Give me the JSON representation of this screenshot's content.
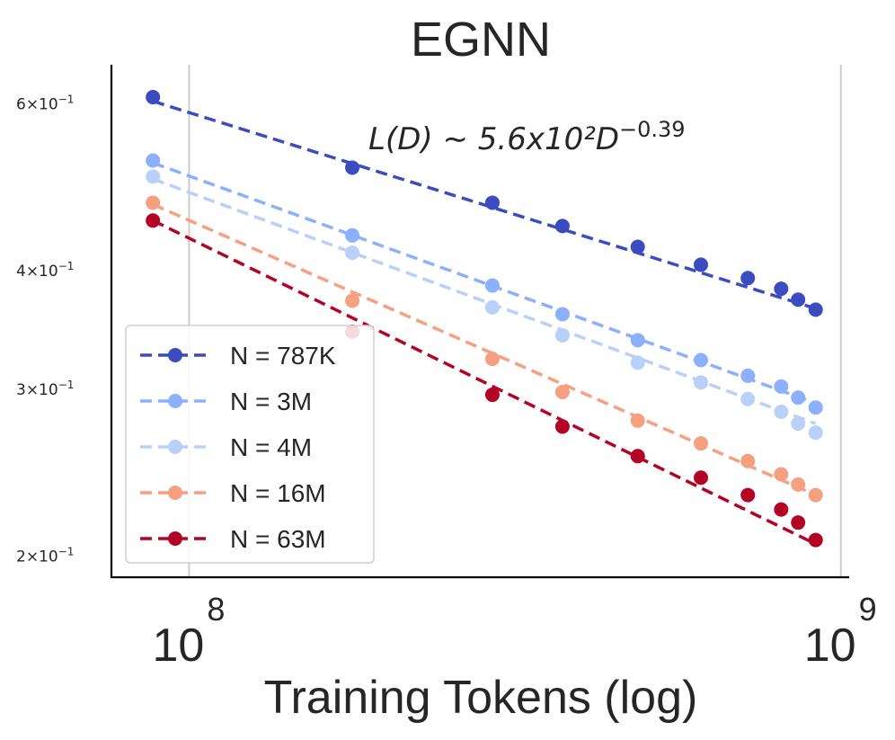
{
  "chart_data": {
    "type": "line",
    "title": "EGNN",
    "xlabel": "Training Tokens (log)",
    "ylabel": "",
    "xscale": "log",
    "yscale": "log",
    "xlim": [
      76000000,
      1030000000
    ],
    "ylim": [
      0.19,
      0.66
    ],
    "xticks": [
      {
        "value": 100000000,
        "base": "10",
        "exp": "8"
      },
      {
        "value": 1000000000,
        "base": "10",
        "exp": "9"
      }
    ],
    "yticks": [
      {
        "value": 0.6,
        "mant": "6",
        "base": "10",
        "exp": "−1"
      },
      {
        "value": 0.4,
        "mant": "4",
        "base": "10",
        "exp": "−1"
      },
      {
        "value": 0.3,
        "mant": "3",
        "base": "10",
        "exp": "−1"
      },
      {
        "value": 0.2,
        "mant": "2",
        "base": "10",
        "exp": "−1"
      }
    ],
    "grid": {
      "x": true,
      "y": false
    },
    "legend_position": "lower-left",
    "annotation": {
      "text": "L(D) ∼ 5.6x10²D^−0.39",
      "prefix": "L(D) ∼ 5.6x10²D",
      "exp": "−0.39"
    },
    "x": [
      88000000,
      178000000,
      292000000,
      374000000,
      488000000,
      610000000,
      720000000,
      810000000,
      860000000,
      915000000
    ],
    "series": [
      {
        "name": "N = 787K",
        "color": "#3b4cc0",
        "marker_x": [
          88000000,
          178000000,
          292000000,
          374000000,
          488000000,
          610000000,
          720000000,
          810000000,
          860000000,
          915000000
        ],
        "values": [
          0.61,
          0.514,
          0.472,
          0.446,
          0.424,
          0.406,
          0.393,
          0.383,
          0.373,
          0.364
        ],
        "fit_start": 0.604,
        "fit_end": 0.365
      },
      {
        "name": "N = 3M",
        "color": "#8db0fe",
        "marker_x": [
          88000000,
          178000000,
          292000000,
          374000000,
          488000000,
          610000000,
          720000000,
          810000000,
          860000000,
          915000000
        ],
        "values": [
          0.523,
          0.436,
          0.386,
          0.36,
          0.338,
          0.322,
          0.31,
          0.302,
          0.294,
          0.287
        ],
        "fit_start": 0.52,
        "fit_end": 0.29
      },
      {
        "name": "N = 4M",
        "color": "#b9d0f9",
        "marker_x": [
          88000000,
          178000000,
          292000000,
          374000000,
          488000000,
          610000000,
          720000000,
          810000000,
          860000000,
          915000000
        ],
        "values": [
          0.503,
          0.418,
          0.366,
          0.342,
          0.32,
          0.305,
          0.293,
          0.284,
          0.276,
          0.27
        ],
        "fit_start": 0.5,
        "fit_end": 0.276
      },
      {
        "name": "N = 16M",
        "color": "#f5a081",
        "marker_x": [
          88000000,
          178000000,
          292000000,
          374000000,
          488000000,
          610000000,
          720000000,
          810000000,
          860000000,
          915000000
        ],
        "values": [
          0.472,
          0.372,
          0.323,
          0.298,
          0.278,
          0.263,
          0.252,
          0.244,
          0.238,
          0.232
        ],
        "fit_start": 0.47,
        "fit_end": 0.232
      },
      {
        "name": "N = 63M",
        "color": "#b40426",
        "marker_x": [
          88000000,
          178000000,
          292000000,
          374000000,
          488000000,
          610000000,
          720000000,
          810000000,
          860000000,
          915000000
        ],
        "values": [
          0.452,
          0.345,
          0.296,
          0.274,
          0.255,
          0.242,
          0.232,
          0.224,
          0.217,
          0.208
        ],
        "fit_start": 0.452,
        "fit_end": 0.206
      }
    ]
  }
}
